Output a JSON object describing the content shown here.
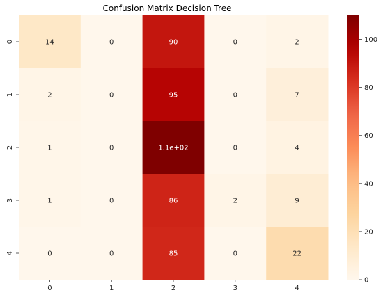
{
  "chart_data": {
    "type": "heatmap",
    "title": "Confusion Matrix Decision Tree",
    "xlabel": "",
    "ylabel": "",
    "x_tick_labels": [
      "0",
      "1",
      "2",
      "3",
      "4"
    ],
    "y_tick_labels": [
      "0",
      "1",
      "2",
      "3",
      "4"
    ],
    "values": [
      [
        14,
        0,
        90,
        0,
        2
      ],
      [
        2,
        0,
        95,
        0,
        7
      ],
      [
        1,
        0,
        110,
        0,
        4
      ],
      [
        1,
        0,
        86,
        2,
        9
      ],
      [
        0,
        0,
        85,
        0,
        22
      ]
    ],
    "cell_labels": [
      [
        "14",
        "0",
        "90",
        "0",
        "2"
      ],
      [
        "2",
        "0",
        "95",
        "0",
        "7"
      ],
      [
        "1",
        "0",
        "1.1e+02",
        "0",
        "4"
      ],
      [
        "1",
        "0",
        "86",
        "2",
        "9"
      ],
      [
        "0",
        "0",
        "85",
        "0",
        "22"
      ]
    ],
    "colormap": "OrRd",
    "colorbar": {
      "range": [
        0,
        110
      ],
      "ticks": [
        0,
        20,
        40,
        60,
        80,
        100
      ],
      "tick_labels": [
        "0",
        "20",
        "40",
        "60",
        "80",
        "100"
      ]
    },
    "grid": false,
    "legend": "colorbar-right"
  }
}
